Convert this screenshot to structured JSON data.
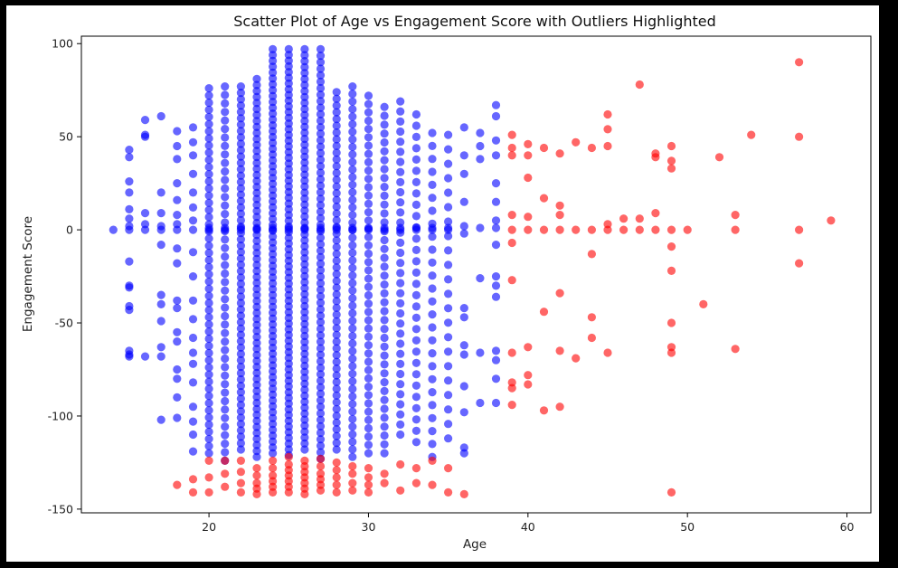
{
  "chart_data": {
    "type": "scatter",
    "title": "Scatter Plot of Age vs Engagement Score with Outliers Highlighted",
    "xlabel": "Age",
    "ylabel": "Engagement Score",
    "xlim": [
      12,
      61.5
    ],
    "ylim": [
      -152,
      104
    ],
    "xticks": [
      20,
      30,
      40,
      50,
      60
    ],
    "yticks": [
      -150,
      -100,
      -50,
      0,
      50,
      100
    ],
    "grid": false,
    "legend": "none",
    "colors": {
      "normal": "#0000ff",
      "outlier": "#ff0000"
    },
    "series": [
      {
        "role": "normal",
        "color": "#0000ff",
        "points": [
          [
            14,
            0
          ],
          [
            15,
            43
          ],
          [
            15,
            39
          ],
          [
            15,
            26
          ],
          [
            15,
            20
          ],
          [
            15,
            11
          ],
          [
            15,
            6
          ],
          [
            15,
            2
          ],
          [
            15,
            0
          ],
          [
            15,
            -17
          ],
          [
            15,
            -30
          ],
          [
            15,
            -31
          ],
          [
            15,
            -41
          ],
          [
            15,
            -43
          ],
          [
            15,
            -65
          ],
          [
            15,
            -67
          ],
          [
            15,
            -68
          ],
          [
            16,
            59
          ],
          [
            16,
            51
          ],
          [
            16,
            50
          ],
          [
            16,
            9
          ],
          [
            16,
            3
          ],
          [
            16,
            0
          ],
          [
            16,
            -68
          ],
          [
            17,
            61
          ],
          [
            17,
            20
          ],
          [
            17,
            9
          ],
          [
            17,
            2
          ],
          [
            17,
            0
          ],
          [
            17,
            -8
          ],
          [
            17,
            -35
          ],
          [
            17,
            -40
          ],
          [
            17,
            -49
          ],
          [
            17,
            -63
          ],
          [
            17,
            -68
          ],
          [
            17,
            -102
          ],
          [
            18,
            53
          ],
          [
            18,
            45
          ],
          [
            18,
            38
          ],
          [
            18,
            25
          ],
          [
            18,
            16
          ],
          [
            18,
            8
          ],
          [
            18,
            3
          ],
          [
            18,
            0
          ],
          [
            18,
            -10
          ],
          [
            18,
            -18
          ],
          [
            18,
            -38
          ],
          [
            18,
            -42
          ],
          [
            18,
            -55
          ],
          [
            18,
            -60
          ],
          [
            18,
            -75
          ],
          [
            18,
            -80
          ],
          [
            18,
            -90
          ],
          [
            18,
            -101
          ],
          [
            19,
            55
          ],
          [
            19,
            47
          ],
          [
            19,
            40
          ],
          [
            19,
            30
          ],
          [
            19,
            20
          ],
          [
            19,
            12
          ],
          [
            19,
            5
          ],
          [
            19,
            0
          ],
          [
            19,
            -12
          ],
          [
            19,
            -25
          ],
          [
            19,
            -38
          ],
          [
            19,
            -48
          ],
          [
            19,
            -58
          ],
          [
            19,
            -66
          ],
          [
            19,
            -72
          ],
          [
            19,
            -82
          ],
          [
            19,
            -95
          ],
          [
            19,
            -103
          ],
          [
            19,
            -110
          ],
          [
            19,
            -119
          ],
          [
            38,
            67
          ],
          [
            38,
            61
          ],
          [
            38,
            48
          ],
          [
            38,
            40
          ],
          [
            38,
            25
          ],
          [
            38,
            15
          ],
          [
            38,
            5
          ],
          [
            38,
            1
          ],
          [
            38,
            -8
          ],
          [
            38,
            -25
          ],
          [
            38,
            -30
          ],
          [
            38,
            -36
          ],
          [
            38,
            -65
          ],
          [
            38,
            -70
          ],
          [
            38,
            -80
          ],
          [
            38,
            -93
          ],
          [
            37,
            52
          ],
          [
            37,
            45
          ],
          [
            37,
            38
          ],
          [
            37,
            1
          ],
          [
            37,
            -26
          ],
          [
            37,
            -66
          ],
          [
            37,
            -93
          ],
          [
            36,
            55
          ],
          [
            36,
            40
          ],
          [
            36,
            30
          ],
          [
            36,
            15
          ],
          [
            36,
            2
          ],
          [
            36,
            -2
          ],
          [
            36,
            -42
          ],
          [
            36,
            -47
          ],
          [
            36,
            -62
          ],
          [
            36,
            -67
          ],
          [
            36,
            -84
          ],
          [
            36,
            -98
          ],
          [
            36,
            -117
          ],
          [
            36,
            -120
          ]
        ],
        "clusters": [
          {
            "age": 20,
            "min": -120,
            "max": 76,
            "n": 52
          },
          {
            "age": 21,
            "min": -124,
            "max": 77,
            "n": 45
          },
          {
            "age": 22,
            "min": -118,
            "max": 77,
            "n": 58
          },
          {
            "age": 23,
            "min": -122,
            "max": 81,
            "n": 64
          },
          {
            "age": 24,
            "min": -120,
            "max": 97,
            "n": 70
          },
          {
            "age": 25,
            "min": -121,
            "max": 97,
            "n": 72
          },
          {
            "age": 26,
            "min": -118,
            "max": 97,
            "n": 68
          },
          {
            "age": 27,
            "min": -123,
            "max": 97,
            "n": 64
          },
          {
            "age": 28,
            "min": -118,
            "max": 74,
            "n": 54
          },
          {
            "age": 29,
            "min": -122,
            "max": 77,
            "n": 50
          },
          {
            "age": 30,
            "min": -120,
            "max": 72,
            "n": 44
          },
          {
            "age": 31,
            "min": -120,
            "max": 66,
            "n": 40
          },
          {
            "age": 32,
            "min": -110,
            "max": 69,
            "n": 34
          },
          {
            "age": 33,
            "min": -114,
            "max": 62,
            "n": 30
          },
          {
            "age": 34,
            "min": -122,
            "max": 52,
            "n": 26
          },
          {
            "age": 35,
            "min": -112,
            "max": 51,
            "n": 22
          }
        ]
      },
      {
        "role": "outlier",
        "color": "#ff0000",
        "points": [
          [
            18,
            -137
          ],
          [
            19,
            -134
          ],
          [
            19,
            -141
          ],
          [
            20,
            -124
          ],
          [
            20,
            -133
          ],
          [
            20,
            -141
          ],
          [
            21,
            -124
          ],
          [
            21,
            -131
          ],
          [
            21,
            -138
          ],
          [
            22,
            -124
          ],
          [
            22,
            -130
          ],
          [
            22,
            -136
          ],
          [
            22,
            -141
          ],
          [
            23,
            -128
          ],
          [
            23,
            -132
          ],
          [
            23,
            -136
          ],
          [
            23,
            -139
          ],
          [
            23,
            -142
          ],
          [
            24,
            -124
          ],
          [
            24,
            -128
          ],
          [
            24,
            -132
          ],
          [
            24,
            -135
          ],
          [
            24,
            -138
          ],
          [
            24,
            -141
          ],
          [
            25,
            -122
          ],
          [
            25,
            -126
          ],
          [
            25,
            -129
          ],
          [
            25,
            -132
          ],
          [
            25,
            -135
          ],
          [
            25,
            -138
          ],
          [
            25,
            -141
          ],
          [
            26,
            -124
          ],
          [
            26,
            -127
          ],
          [
            26,
            -130
          ],
          [
            26,
            -133
          ],
          [
            26,
            -136
          ],
          [
            26,
            -139
          ],
          [
            26,
            -142
          ],
          [
            27,
            -123
          ],
          [
            27,
            -127
          ],
          [
            27,
            -131
          ],
          [
            27,
            -134
          ],
          [
            27,
            -137
          ],
          [
            27,
            -140
          ],
          [
            28,
            -125
          ],
          [
            28,
            -129
          ],
          [
            28,
            -133
          ],
          [
            28,
            -137
          ],
          [
            28,
            -141
          ],
          [
            29,
            -127
          ],
          [
            29,
            -131
          ],
          [
            29,
            -136
          ],
          [
            29,
            -140
          ],
          [
            30,
            -128
          ],
          [
            30,
            -133
          ],
          [
            30,
            -137
          ],
          [
            30,
            -141
          ],
          [
            31,
            -131
          ],
          [
            31,
            -136
          ],
          [
            32,
            -126
          ],
          [
            32,
            -140
          ],
          [
            33,
            -128
          ],
          [
            33,
            -136
          ],
          [
            34,
            -124
          ],
          [
            34,
            -137
          ],
          [
            35,
            -128
          ],
          [
            35,
            -141
          ],
          [
            36,
            -142
          ],
          [
            39,
            51
          ],
          [
            39,
            44
          ],
          [
            39,
            40
          ],
          [
            39,
            8
          ],
          [
            39,
            0
          ],
          [
            39,
            -7
          ],
          [
            39,
            -27
          ],
          [
            39,
            -66
          ],
          [
            39,
            -82
          ],
          [
            39,
            -85
          ],
          [
            39,
            -94
          ],
          [
            40,
            46
          ],
          [
            40,
            40
          ],
          [
            40,
            28
          ],
          [
            40,
            7
          ],
          [
            40,
            0
          ],
          [
            40,
            -63
          ],
          [
            40,
            -78
          ],
          [
            40,
            -83
          ],
          [
            41,
            44
          ],
          [
            41,
            17
          ],
          [
            41,
            0
          ],
          [
            41,
            -44
          ],
          [
            41,
            -97
          ],
          [
            42,
            41
          ],
          [
            42,
            13
          ],
          [
            42,
            8
          ],
          [
            42,
            0
          ],
          [
            42,
            -34
          ],
          [
            42,
            -65
          ],
          [
            42,
            -95
          ],
          [
            43,
            47
          ],
          [
            43,
            0
          ],
          [
            43,
            -69
          ],
          [
            44,
            44
          ],
          [
            44,
            0
          ],
          [
            44,
            -13
          ],
          [
            44,
            -47
          ],
          [
            44,
            -58
          ],
          [
            45,
            62
          ],
          [
            45,
            54
          ],
          [
            45,
            45
          ],
          [
            45,
            3
          ],
          [
            45,
            0
          ],
          [
            45,
            -66
          ],
          [
            46,
            6
          ],
          [
            46,
            0
          ],
          [
            47,
            78
          ],
          [
            47,
            6
          ],
          [
            47,
            0
          ],
          [
            48,
            41
          ],
          [
            48,
            39
          ],
          [
            48,
            9
          ],
          [
            48,
            0
          ],
          [
            49,
            45
          ],
          [
            49,
            37
          ],
          [
            49,
            33
          ],
          [
            49,
            0
          ],
          [
            49,
            -9
          ],
          [
            49,
            -22
          ],
          [
            49,
            -50
          ],
          [
            49,
            -63
          ],
          [
            49,
            -66
          ],
          [
            49,
            -141
          ],
          [
            50,
            0
          ],
          [
            51,
            -40
          ],
          [
            52,
            39
          ],
          [
            53,
            8
          ],
          [
            53,
            0
          ],
          [
            53,
            -64
          ],
          [
            54,
            51
          ],
          [
            57,
            90
          ],
          [
            57,
            50
          ],
          [
            57,
            0
          ],
          [
            57,
            -18
          ],
          [
            59,
            5
          ]
        ]
      }
    ]
  }
}
